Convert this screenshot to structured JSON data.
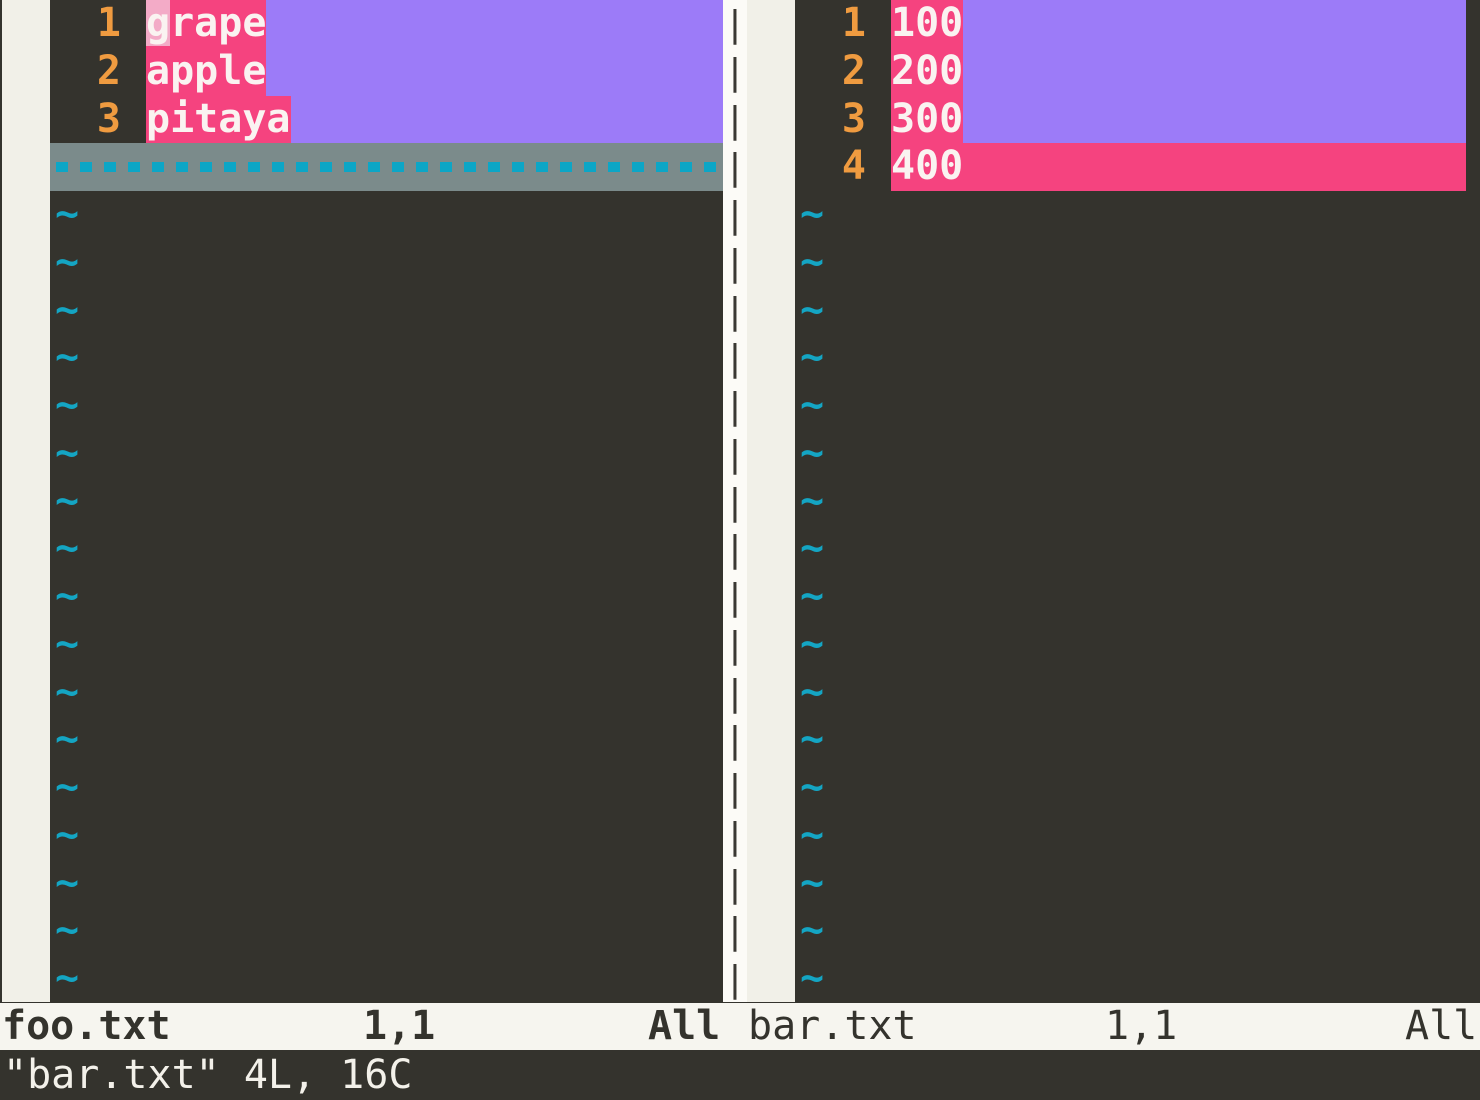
{
  "app": "vimdiff",
  "tilde_char": "~",
  "left_window": {
    "lines": [
      {
        "number": "1",
        "cursor_char": "g",
        "after_cursor": "rape",
        "diff": "changed"
      },
      {
        "number": "2",
        "text": "apple",
        "diff": "changed"
      },
      {
        "number": "3",
        "text": "pitaya",
        "diff": "changed"
      }
    ],
    "filler_line": "dashed-deleted-line-placeholder",
    "empty_line_count": 17,
    "status": {
      "filename": "foo.txt",
      "cursor_position": "1,1",
      "scroll_position": "All",
      "active": true
    }
  },
  "right_window": {
    "lines": [
      {
        "number": "1",
        "text": "100",
        "diff": "changed"
      },
      {
        "number": "2",
        "text": "200",
        "diff": "changed"
      },
      {
        "number": "3",
        "text": "300",
        "diff": "changed"
      },
      {
        "number": "4",
        "text": "400",
        "diff": "added"
      }
    ],
    "empty_line_count": 17,
    "status": {
      "filename": "bar.txt",
      "cursor_position": "1,1",
      "scroll_position": "All",
      "active": false
    }
  },
  "separator": {
    "char": "|",
    "count": 21
  },
  "command_line": {
    "message": "\"bar.txt\" 4L, 16C"
  },
  "colors": {
    "background": "#34332d",
    "diff_text_pink": "#f5437f",
    "diff_change_purple": "#9c7bf8",
    "diff_add_pink": "#f5437f",
    "cursor_pale_pink": "#f3abc7",
    "filler_gray": "#7b8b8b",
    "teal_accent": "#0ca6c6",
    "line_number_orange": "#ef9b40",
    "statusline_bg": "#f6f5ef",
    "fold_column_bg": "#f1f0e8",
    "text_white": "#faf3f1"
  }
}
